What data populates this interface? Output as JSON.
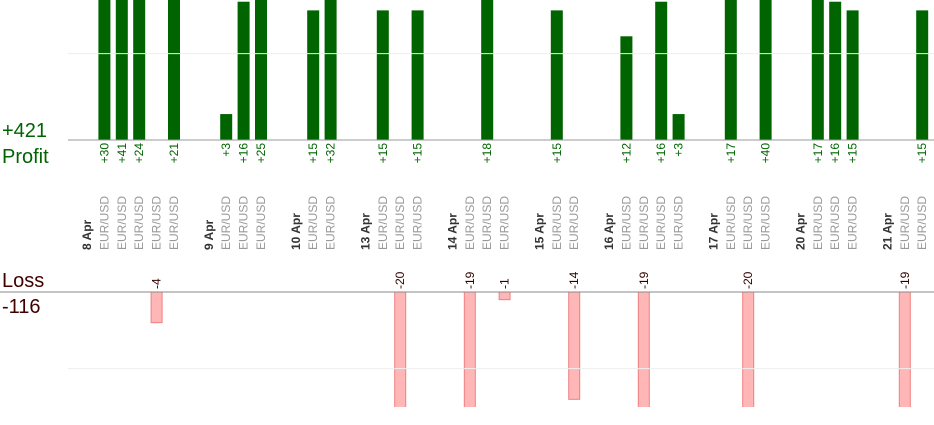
{
  "chart_data": {
    "type": "bar",
    "profit_total": "+421",
    "profit_label": "Profit",
    "loss_label": "Loss",
    "loss_total": "-116",
    "profit_color": "#006400",
    "loss_color": "#ffb6b6",
    "ylim": [
      0,
      16.2
    ],
    "yticks": [
      0,
      10
    ],
    "y2lim": [
      -15,
      0
    ],
    "y2ticks": [
      -10,
      0
    ],
    "grid": true,
    "days": [
      {
        "date": "8 Apr",
        "trades": [
          {
            "symbol": "EUR/USD",
            "value": 30,
            "value_label": "+30"
          },
          {
            "symbol": "EUR/USD",
            "value": 41,
            "value_label": "+41"
          },
          {
            "symbol": "EUR/USD",
            "value": 24,
            "value_label": "+24"
          },
          {
            "symbol": "EUR/USD",
            "value": -4
          },
          {
            "symbol": "EUR/USD",
            "value": 21,
            "value_label": "+21"
          }
        ]
      },
      {
        "date": "9 Apr",
        "trades": [
          {
            "symbol": "EUR/USD",
            "value": 3,
            "value_label": "+3"
          },
          {
            "symbol": "EUR/USD",
            "value": 16,
            "value_label": "+16"
          },
          {
            "symbol": "EUR/USD",
            "value": 25,
            "value_label": "+25"
          }
        ]
      },
      {
        "date": "10 Apr",
        "trades": [
          {
            "symbol": "EUR/USD",
            "value": 15,
            "value_label": "+15"
          },
          {
            "symbol": "EUR/USD",
            "value": 32,
            "value_label": "+32"
          }
        ]
      },
      {
        "date": "13 Apr",
        "trades": [
          {
            "symbol": "EUR/USD",
            "value": 15,
            "value_label": "+15"
          },
          {
            "symbol": "EUR/USD",
            "value": -20
          },
          {
            "symbol": "EUR/USD",
            "value": 15,
            "value_label": "+15"
          }
        ]
      },
      {
        "date": "14 Apr",
        "trades": [
          {
            "symbol": "EUR/USD",
            "value": -19
          },
          {
            "symbol": "EUR/USD",
            "value": 18,
            "value_label": "+18"
          },
          {
            "symbol": "EUR/USD",
            "value": -1
          }
        ]
      },
      {
        "date": "15 Apr",
        "trades": [
          {
            "symbol": "EUR/USD",
            "value": 15,
            "value_label": "+15"
          },
          {
            "symbol": "EUR/USD",
            "value": -14
          }
        ]
      },
      {
        "date": "16 Apr",
        "trades": [
          {
            "symbol": "EUR/USD",
            "value": 12,
            "value_label": "+12"
          },
          {
            "symbol": "EUR/USD",
            "value": -19
          },
          {
            "symbol": "EUR/USD",
            "value": 16,
            "value_label": "+16"
          },
          {
            "symbol": "EUR/USD",
            "value": 3,
            "value_label": "+3"
          }
        ]
      },
      {
        "date": "17 Apr",
        "trades": [
          {
            "symbol": "EUR/USD",
            "value": 17,
            "value_label": "+17"
          },
          {
            "symbol": "EUR/USD",
            "value": -20
          },
          {
            "symbol": "EUR/USD",
            "value": 40,
            "value_label": "+40"
          }
        ]
      },
      {
        "date": "20 Apr",
        "trades": [
          {
            "symbol": "EUR/USD",
            "value": 17,
            "value_label": "+17"
          },
          {
            "symbol": "EUR/USD",
            "value": 16,
            "value_label": "+16"
          },
          {
            "symbol": "EUR/USD",
            "value": 15,
            "value_label": "+15"
          }
        ]
      },
      {
        "date": "21 Apr",
        "trades": [
          {
            "symbol": "EUR/USD",
            "value": -19
          },
          {
            "symbol": "EUR/USD",
            "value": 15,
            "value_label": "+15"
          }
        ]
      }
    ]
  }
}
